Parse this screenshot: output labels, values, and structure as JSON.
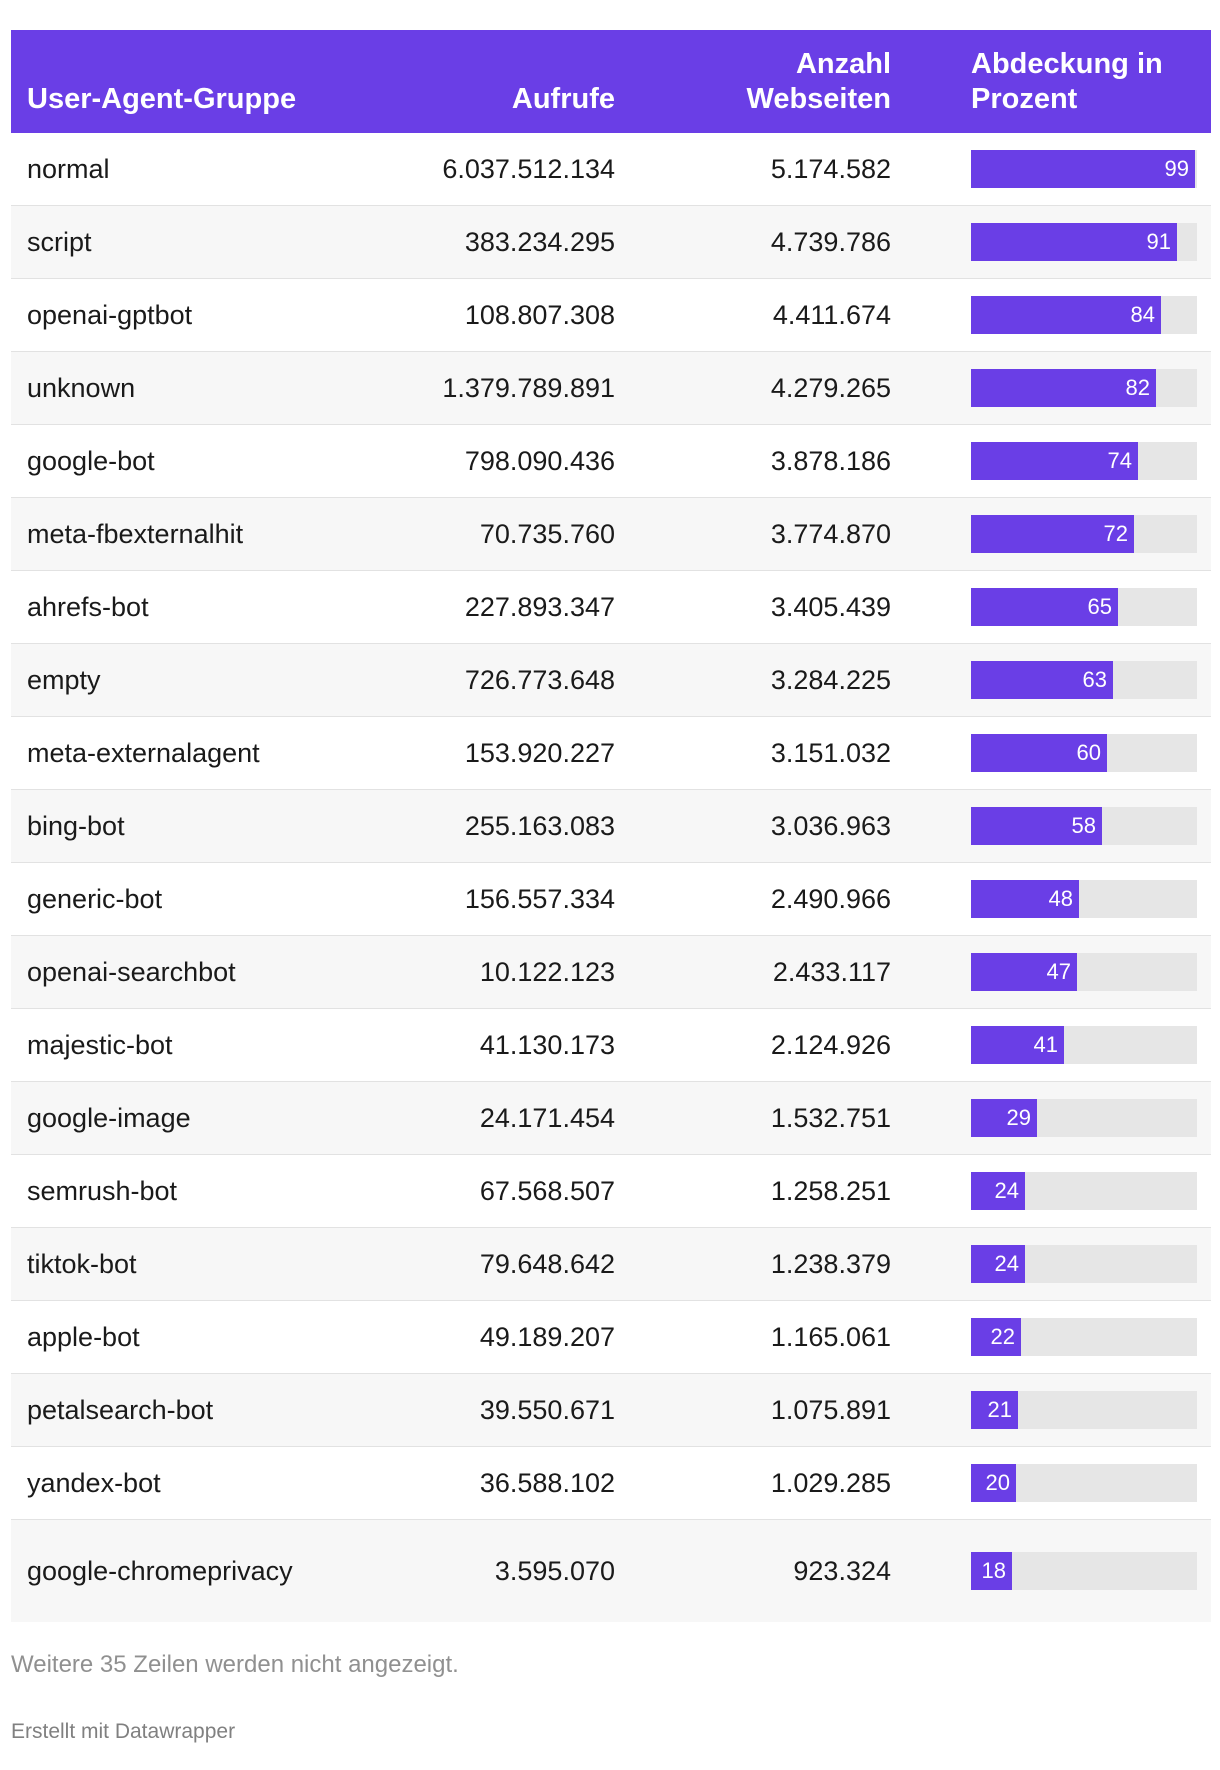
{
  "chart_data": {
    "type": "table",
    "columns": [
      "User-Agent-Gruppe",
      "Aufrufe",
      "Anzahl Webseiten",
      "Abdeckung in Prozent"
    ],
    "rows": [
      {
        "group": "normal",
        "calls": "6.037.512.134",
        "websites": "5.174.582",
        "coverage": 99
      },
      {
        "group": "script",
        "calls": "383.234.295",
        "websites": "4.739.786",
        "coverage": 91
      },
      {
        "group": "openai-gptbot",
        "calls": "108.807.308",
        "websites": "4.411.674",
        "coverage": 84
      },
      {
        "group": "unknown",
        "calls": "1.379.789.891",
        "websites": "4.279.265",
        "coverage": 82
      },
      {
        "group": "google-bot",
        "calls": "798.090.436",
        "websites": "3.878.186",
        "coverage": 74
      },
      {
        "group": "meta-fbexternalhit",
        "calls": "70.735.760",
        "websites": "3.774.870",
        "coverage": 72
      },
      {
        "group": "ahrefs-bot",
        "calls": "227.893.347",
        "websites": "3.405.439",
        "coverage": 65
      },
      {
        "group": "empty",
        "calls": "726.773.648",
        "websites": "3.284.225",
        "coverage": 63
      },
      {
        "group": "meta-externalagent",
        "calls": "153.920.227",
        "websites": "3.151.032",
        "coverage": 60
      },
      {
        "group": "bing-bot",
        "calls": "255.163.083",
        "websites": "3.036.963",
        "coverage": 58
      },
      {
        "group": "generic-bot",
        "calls": "156.557.334",
        "websites": "2.490.966",
        "coverage": 48
      },
      {
        "group": "openai-searchbot",
        "calls": "10.122.123",
        "websites": "2.433.117",
        "coverage": 47
      },
      {
        "group": "majestic-bot",
        "calls": "41.130.173",
        "websites": "2.124.926",
        "coverage": 41
      },
      {
        "group": "google-image",
        "calls": "24.171.454",
        "websites": "1.532.751",
        "coverage": 29
      },
      {
        "group": "semrush-bot",
        "calls": "67.568.507",
        "websites": "1.258.251",
        "coverage": 24
      },
      {
        "group": "tiktok-bot",
        "calls": "79.648.642",
        "websites": "1.238.379",
        "coverage": 24
      },
      {
        "group": "apple-bot",
        "calls": "49.189.207",
        "websites": "1.165.061",
        "coverage": 22
      },
      {
        "group": "petalsearch-bot",
        "calls": "39.550.671",
        "websites": "1.075.891",
        "coverage": 21
      },
      {
        "group": "yandex-bot",
        "calls": "36.588.102",
        "websites": "1.029.285",
        "coverage": 20
      },
      {
        "group": "google-chromeprivacy",
        "calls": "3.595.070",
        "websites": "923.324",
        "coverage": 18
      }
    ],
    "coverage_range": [
      0,
      100
    ]
  },
  "footer": {
    "note": "Weitere 35 Zeilen werden nicht angezeigt.",
    "credit": "Erstellt mit Datawrapper"
  },
  "colors": {
    "accent": "#6a3ee6",
    "bar_track": "#e6e6e6"
  }
}
